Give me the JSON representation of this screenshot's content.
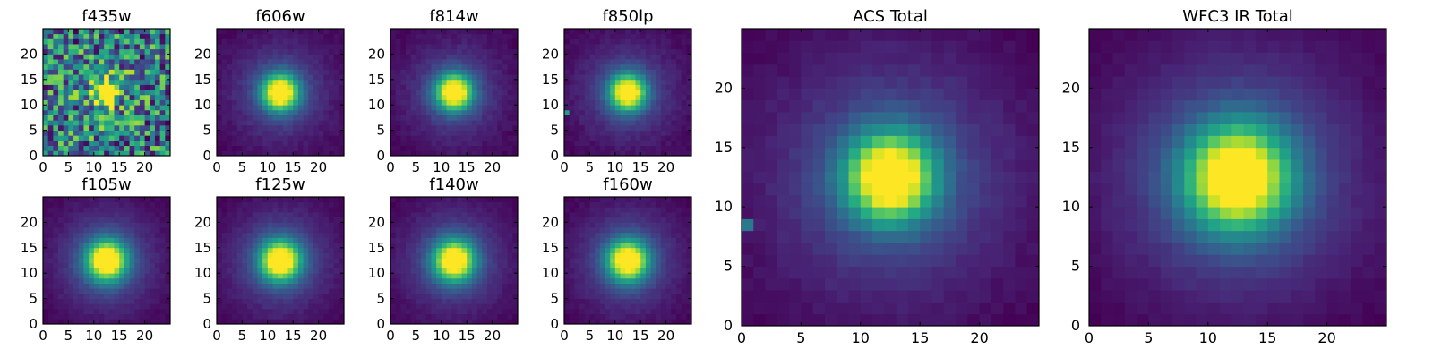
{
  "chart_data": [
    {
      "type": "heatmap",
      "title": "f435w",
      "grid_size": 25,
      "center": [
        12,
        12
      ],
      "core_width": 1.4,
      "halo_width": 5.0,
      "halo_amp": 0.1,
      "noise": 0.3,
      "background": 0.32,
      "xticks": [
        0,
        5,
        10,
        15,
        20
      ],
      "yticks": [
        0,
        5,
        10,
        15,
        20
      ],
      "xlim": [
        0,
        25
      ],
      "ylim": [
        0,
        25
      ],
      "colormap": "viridis"
    },
    {
      "type": "heatmap",
      "title": "f606w",
      "grid_size": 25,
      "center": [
        12,
        12
      ],
      "core_width": 2.4,
      "halo_width": 6.5,
      "halo_amp": 0.25,
      "noise": 0.025,
      "background": 0.03,
      "xticks": [
        0,
        5,
        10,
        15,
        20
      ],
      "yticks": [
        0,
        5,
        10,
        15,
        20
      ],
      "xlim": [
        0,
        25
      ],
      "ylim": [
        0,
        25
      ],
      "colormap": "viridis"
    },
    {
      "type": "heatmap",
      "title": "f814w",
      "grid_size": 25,
      "center": [
        12,
        12
      ],
      "core_width": 2.4,
      "halo_width": 6.5,
      "halo_amp": 0.25,
      "noise": 0.025,
      "background": 0.03,
      "xticks": [
        0,
        5,
        10,
        15,
        20
      ],
      "yticks": [
        0,
        5,
        10,
        15,
        20
      ],
      "xlim": [
        0,
        25
      ],
      "ylim": [
        0,
        25
      ],
      "colormap": "viridis"
    },
    {
      "type": "heatmap",
      "title": "f850lp",
      "grid_size": 25,
      "center": [
        12,
        12
      ],
      "core_width": 2.4,
      "halo_width": 6.5,
      "halo_amp": 0.25,
      "noise": 0.025,
      "background": 0.03,
      "xticks": [
        0,
        5,
        10,
        15,
        20
      ],
      "yticks": [
        0,
        5,
        10,
        15,
        20
      ],
      "xlim": [
        0,
        25
      ],
      "ylim": [
        0,
        25
      ],
      "colormap": "viridis",
      "hot_pixel": [
        0,
        8,
        0.55
      ]
    },
    {
      "type": "heatmap",
      "title": "f105w",
      "grid_size": 25,
      "center": [
        12,
        12
      ],
      "core_width": 2.7,
      "halo_width": 7.0,
      "halo_amp": 0.28,
      "noise": 0.02,
      "background": 0.02,
      "xticks": [
        0,
        5,
        10,
        15,
        20
      ],
      "yticks": [
        0,
        5,
        10,
        15,
        20
      ],
      "xlim": [
        0,
        25
      ],
      "ylim": [
        0,
        25
      ],
      "colormap": "viridis"
    },
    {
      "type": "heatmap",
      "title": "f125w",
      "grid_size": 25,
      "center": [
        12,
        12
      ],
      "core_width": 2.7,
      "halo_width": 7.0,
      "halo_amp": 0.28,
      "noise": 0.02,
      "background": 0.02,
      "xticks": [
        0,
        5,
        10,
        15,
        20
      ],
      "yticks": [
        0,
        5,
        10,
        15,
        20
      ],
      "xlim": [
        0,
        25
      ],
      "ylim": [
        0,
        25
      ],
      "colormap": "viridis"
    },
    {
      "type": "heatmap",
      "title": "f140w",
      "grid_size": 25,
      "center": [
        12,
        12
      ],
      "core_width": 2.7,
      "halo_width": 7.0,
      "halo_amp": 0.28,
      "noise": 0.02,
      "background": 0.02,
      "xticks": [
        0,
        5,
        10,
        15,
        20
      ],
      "yticks": [
        0,
        5,
        10,
        15,
        20
      ],
      "xlim": [
        0,
        25
      ],
      "ylim": [
        0,
        25
      ],
      "colormap": "viridis"
    },
    {
      "type": "heatmap",
      "title": "f160w",
      "grid_size": 25,
      "center": [
        12,
        12
      ],
      "core_width": 2.7,
      "halo_width": 7.0,
      "halo_amp": 0.28,
      "noise": 0.02,
      "background": 0.02,
      "xticks": [
        0,
        5,
        10,
        15,
        20
      ],
      "yticks": [
        0,
        5,
        10,
        15,
        20
      ],
      "xlim": [
        0,
        25
      ],
      "ylim": [
        0,
        25
      ],
      "colormap": "viridis"
    },
    {
      "type": "heatmap",
      "title": "ACS Total",
      "grid_size": 25,
      "center": [
        12,
        12
      ],
      "core_width": 2.5,
      "halo_width": 7.0,
      "halo_amp": 0.28,
      "noise": 0.02,
      "background": 0.05,
      "xticks": [
        0,
        5,
        10,
        15,
        20
      ],
      "yticks": [
        0,
        5,
        10,
        15,
        20
      ],
      "xlim": [
        0,
        25
      ],
      "ylim": [
        0,
        25
      ],
      "colormap": "viridis",
      "hot_pixel": [
        0,
        8,
        0.4
      ]
    },
    {
      "type": "heatmap",
      "title": "WFC3 IR Total",
      "grid_size": 25,
      "center": [
        12,
        12
      ],
      "core_width": 3.0,
      "halo_width": 7.5,
      "halo_amp": 0.3,
      "noise": 0.015,
      "background": 0.02,
      "xticks": [
        0,
        5,
        10,
        15,
        20
      ],
      "yticks": [
        0,
        5,
        10,
        15,
        20
      ],
      "xlim": [
        0,
        25
      ],
      "ylim": [
        0,
        25
      ],
      "colormap": "viridis"
    }
  ]
}
